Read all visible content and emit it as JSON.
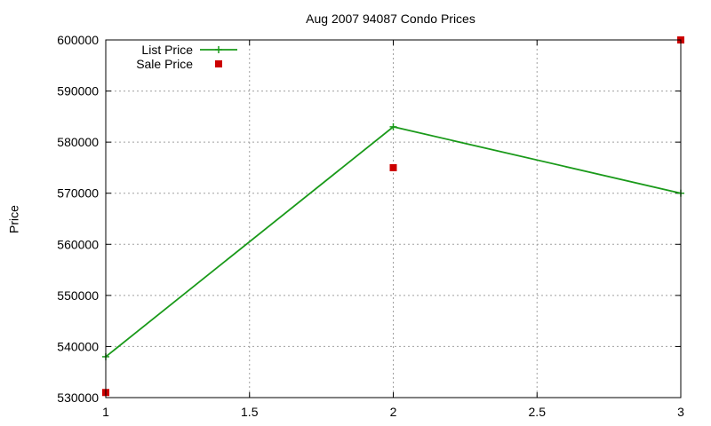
{
  "chart_data": {
    "type": "line",
    "title": "Aug 2007 94087 Condo Prices",
    "xlabel": "",
    "ylabel": "Price",
    "xlim": [
      1,
      3
    ],
    "ylim": [
      530000,
      600000
    ],
    "x_ticks": [
      1,
      1.5,
      2,
      2.5,
      3
    ],
    "x_tick_labels": [
      "1",
      "1.5",
      "2",
      "2.5",
      "3"
    ],
    "y_ticks": [
      530000,
      540000,
      550000,
      560000,
      570000,
      580000,
      590000,
      600000
    ],
    "y_tick_labels": [
      "530000",
      "540000",
      "550000",
      "560000",
      "570000",
      "580000",
      "590000",
      "600000"
    ],
    "grid": true,
    "legend_position": "top-left",
    "series": [
      {
        "name": "List Price",
        "style": "lines+points",
        "marker": "plus",
        "color": "#1a9a1a",
        "x": [
          1,
          2,
          3
        ],
        "y": [
          538000,
          583000,
          570000
        ]
      },
      {
        "name": "Sale Price",
        "style": "points",
        "marker": "square",
        "color": "#cc0000",
        "x": [
          1,
          2,
          3
        ],
        "y": [
          531000,
          575000,
          600000
        ]
      }
    ]
  }
}
